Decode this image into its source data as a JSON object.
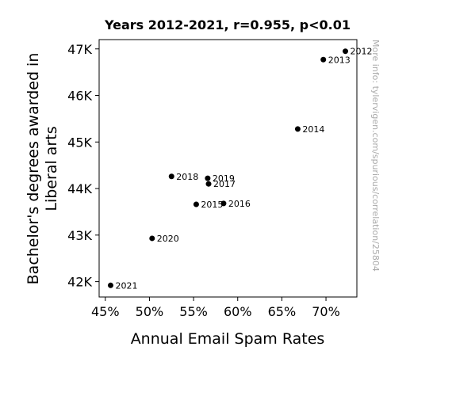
{
  "chart_data": {
    "type": "scatter",
    "title": "Years 2012-2021, r=0.955, p<0.01",
    "xlabel": "Annual Email Spam Rates",
    "ylabel_lines": [
      "Bachelor's degrees awarded in",
      "Liberal arts"
    ],
    "xlim": [
      0.443,
      0.735
    ],
    "ylim": [
      41670,
      47200
    ],
    "x_ticks": [
      {
        "value": 0.45,
        "label": "45%"
      },
      {
        "value": 0.5,
        "label": "50%"
      },
      {
        "value": 0.55,
        "label": "55%"
      },
      {
        "value": 0.6,
        "label": "60%"
      },
      {
        "value": 0.65,
        "label": "65%"
      },
      {
        "value": 0.7,
        "label": "70%"
      }
    ],
    "y_ticks": [
      {
        "value": 42000,
        "label": "42K"
      },
      {
        "value": 43000,
        "label": "43K"
      },
      {
        "value": 44000,
        "label": "44K"
      },
      {
        "value": 45000,
        "label": "45K"
      },
      {
        "value": 46000,
        "label": "46K"
      },
      {
        "value": 47000,
        "label": "47K"
      }
    ],
    "points": [
      {
        "label": "2012",
        "x": 0.722,
        "y": 46950
      },
      {
        "label": "2013",
        "x": 0.697,
        "y": 46770
      },
      {
        "label": "2014",
        "x": 0.668,
        "y": 45280
      },
      {
        "label": "2015",
        "x": 0.553,
        "y": 43660
      },
      {
        "label": "2016",
        "x": 0.584,
        "y": 43680
      },
      {
        "label": "2017",
        "x": 0.567,
        "y": 44100
      },
      {
        "label": "2018",
        "x": 0.525,
        "y": 44260
      },
      {
        "label": "2019",
        "x": 0.566,
        "y": 44220
      },
      {
        "label": "2020",
        "x": 0.503,
        "y": 42930
      },
      {
        "label": "2021",
        "x": 0.456,
        "y": 41920
      }
    ],
    "marker_color": "#000000",
    "grid": false,
    "watermark": "More info: tylervigen.com/spurious/correlation/25804"
  }
}
